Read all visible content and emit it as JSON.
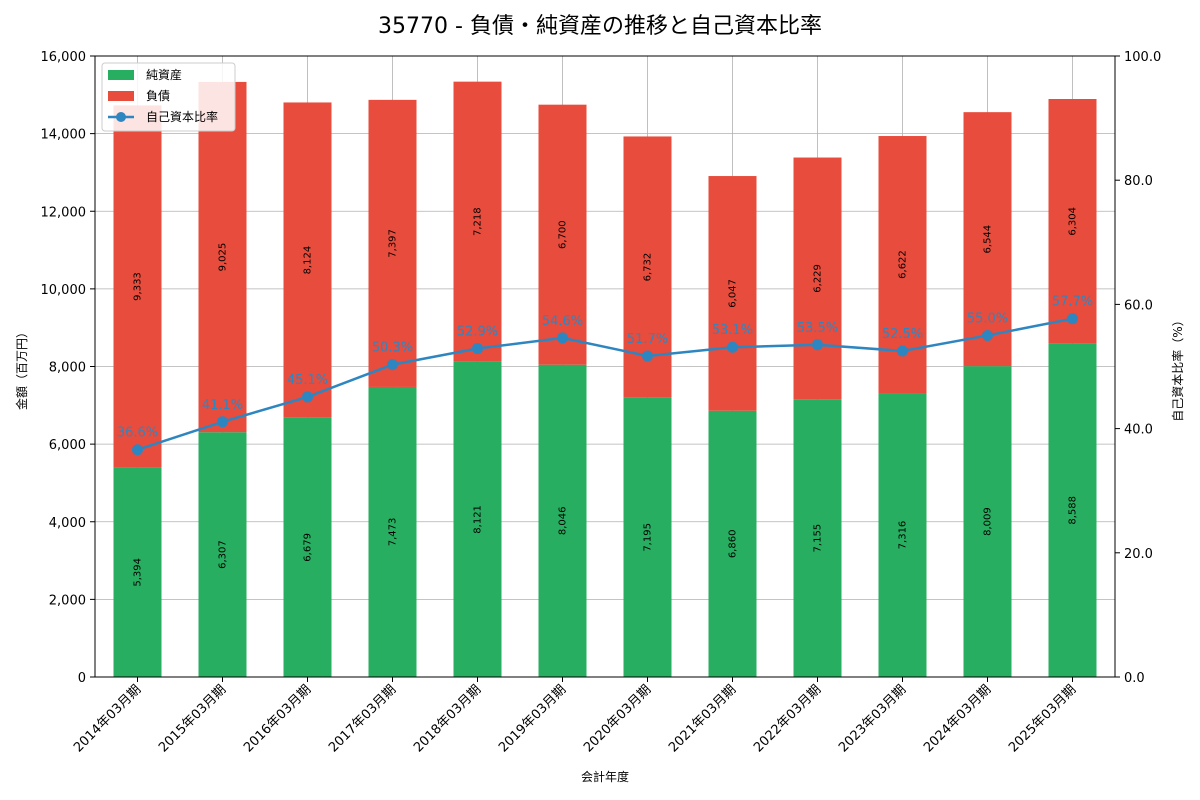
{
  "colors": {
    "net_assets": "#27ae60",
    "liabilities": "#e74c3c",
    "ratio": "#2e86c1"
  },
  "chart_data": {
    "type": "bar",
    "stacked": true,
    "title": "35770 - 負債・純資産の推移と自己資本比率",
    "xlabel": "会計年度",
    "ylabel": "金額（百万円）",
    "y2label": "自己資本比率（%）",
    "ylim": [
      0,
      16000
    ],
    "y2lim": [
      0,
      100
    ],
    "yticks": [
      "0",
      "2,000",
      "4,000",
      "6,000",
      "8,000",
      "10,000",
      "12,000",
      "14,000",
      "16,000"
    ],
    "y2ticks": [
      "0.0",
      "20.0",
      "40.0",
      "60.0",
      "80.0",
      "100.0"
    ],
    "grid": true,
    "legend_position": "top-left",
    "categories": [
      "2014年03月期",
      "2015年03月期",
      "2016年03月期",
      "2017年03月期",
      "2018年03月期",
      "2019年03月期",
      "2020年03月期",
      "2021年03月期",
      "2022年03月期",
      "2023年03月期",
      "2024年03月期",
      "2025年03月期"
    ],
    "series": [
      {
        "name": "純資産",
        "values": [
          5394,
          6307,
          6679,
          7473,
          8121,
          8046,
          7195,
          6860,
          7155,
          7316,
          8009,
          8588
        ],
        "labels": [
          "5,394",
          "6,307",
          "6,679",
          "7,473",
          "8,121",
          "8,046",
          "7,195",
          "6,860",
          "7,155",
          "7,316",
          "8,009",
          "8,588"
        ]
      },
      {
        "name": "負債",
        "values": [
          9333,
          9025,
          8124,
          7397,
          7218,
          6700,
          6732,
          6047,
          6229,
          6622,
          6544,
          6304
        ],
        "labels": [
          "9,333",
          "9,025",
          "8,124",
          "7,397",
          "7,218",
          "6,700",
          "6,732",
          "6,047",
          "6,229",
          "6,622",
          "6,544",
          "6,304"
        ]
      }
    ],
    "line_series": {
      "name": "自己資本比率",
      "axis": "right",
      "values": [
        36.6,
        41.1,
        45.1,
        50.3,
        52.9,
        54.6,
        51.7,
        53.1,
        53.5,
        52.5,
        55.0,
        57.7
      ],
      "labels": [
        "36.6%",
        "41.1%",
        "45.1%",
        "50.3%",
        "52.9%",
        "54.6%",
        "51.7%",
        "53.1%",
        "53.5%",
        "52.5%",
        "55.0%",
        "57.7%"
      ]
    }
  }
}
